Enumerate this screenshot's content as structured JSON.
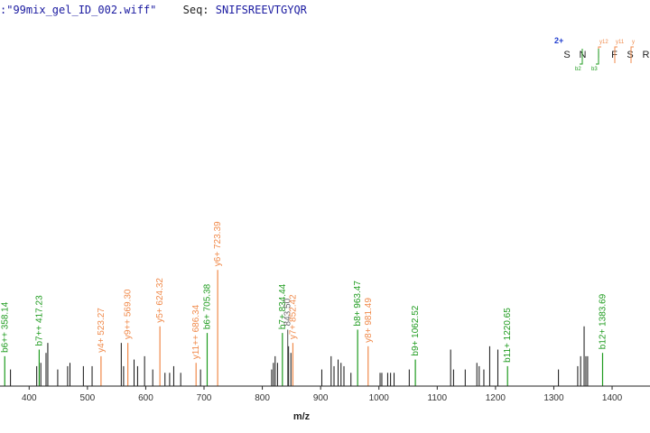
{
  "header": {
    "file_text": ":\"99mix_gel_ID_002.wiff\"",
    "seq_label": "Seq:",
    "seq_value": "SNIFSREEVTGYQR"
  },
  "colors": {
    "b_ion": "#1e9b1e",
    "y_ion": "#f08a4b",
    "unassigned": "#111111",
    "text_grey": "#666666",
    "charge": "#1e3ccf"
  },
  "chart_data": {
    "type": "bar",
    "xlabel": "m/z",
    "xlim": [
      350,
      1465
    ],
    "ylim": [
      0,
      100
    ],
    "x_ticks": [
      400,
      500,
      600,
      700,
      800,
      900,
      1000,
      1100,
      1200,
      1300,
      1400
    ],
    "labeled_peaks": [
      {
        "mz": 358.14,
        "rel": 9,
        "ion": "b",
        "label": "b6++ 358.14"
      },
      {
        "mz": 417.23,
        "rel": 11,
        "ion": "b",
        "label": "b7++ 417.23"
      },
      {
        "mz": 523.27,
        "rel": 9,
        "ion": "y",
        "label": "y4+ 523.27"
      },
      {
        "mz": 569.3,
        "rel": 13,
        "ion": "y",
        "label": "y9++ 569.30"
      },
      {
        "mz": 624.32,
        "rel": 18,
        "ion": "y",
        "label": "y5+ 624.32"
      },
      {
        "mz": 686.34,
        "rel": 7,
        "ion": "y",
        "label": "y11++ 686.34"
      },
      {
        "mz": 705.38,
        "rel": 16,
        "ion": "b",
        "label": "b6+ 705.38"
      },
      {
        "mz": 723.39,
        "rel": 35,
        "ion": "y",
        "label": "y6+ 723.39"
      },
      {
        "mz": 834.44,
        "rel": 16,
        "ion": "b",
        "label": "b7+ 834.44"
      },
      {
        "mz": 843.5,
        "rel": 17,
        "ion": "u",
        "label": "843.50"
      },
      {
        "mz": 852.42,
        "rel": 13,
        "ion": "y",
        "label": "y7+ 852.42"
      },
      {
        "mz": 963.47,
        "rel": 17,
        "ion": "b",
        "label": "b8+ 963.47"
      },
      {
        "mz": 981.49,
        "rel": 12,
        "ion": "y",
        "label": "y8+ 981.49"
      },
      {
        "mz": 1062.52,
        "rel": 8,
        "ion": "b",
        "label": "b9+ 1062.52"
      },
      {
        "mz": 1220.65,
        "rel": 6,
        "ion": "b",
        "label": "b11+ 1220.65"
      },
      {
        "mz": 1383.69,
        "rel": 10,
        "ion": "b",
        "label": "b12+ 1383.69"
      }
    ],
    "unlabeled_peaks": [
      {
        "mz": 368,
        "rel": 5
      },
      {
        "mz": 413,
        "rel": 6
      },
      {
        "mz": 420,
        "rel": 7
      },
      {
        "mz": 429,
        "rel": 10
      },
      {
        "mz": 432,
        "rel": 13
      },
      {
        "mz": 449,
        "rel": 5
      },
      {
        "mz": 466,
        "rel": 6
      },
      {
        "mz": 470,
        "rel": 7
      },
      {
        "mz": 493,
        "rel": 6
      },
      {
        "mz": 508,
        "rel": 6
      },
      {
        "mz": 558,
        "rel": 13
      },
      {
        "mz": 562,
        "rel": 6
      },
      {
        "mz": 580,
        "rel": 8
      },
      {
        "mz": 586,
        "rel": 6
      },
      {
        "mz": 598,
        "rel": 9
      },
      {
        "mz": 612,
        "rel": 5
      },
      {
        "mz": 633,
        "rel": 4
      },
      {
        "mz": 641,
        "rel": 4
      },
      {
        "mz": 648,
        "rel": 6
      },
      {
        "mz": 660,
        "rel": 4
      },
      {
        "mz": 694,
        "rel": 5
      },
      {
        "mz": 816,
        "rel": 5
      },
      {
        "mz": 819,
        "rel": 7
      },
      {
        "mz": 822,
        "rel": 9
      },
      {
        "mz": 826,
        "rel": 7
      },
      {
        "mz": 845,
        "rel": 12
      },
      {
        "mz": 849,
        "rel": 10
      },
      {
        "mz": 902,
        "rel": 5
      },
      {
        "mz": 918,
        "rel": 9
      },
      {
        "mz": 923,
        "rel": 6
      },
      {
        "mz": 930,
        "rel": 8
      },
      {
        "mz": 935,
        "rel": 7
      },
      {
        "mz": 940,
        "rel": 6
      },
      {
        "mz": 952,
        "rel": 4
      },
      {
        "mz": 1002,
        "rel": 4
      },
      {
        "mz": 1005,
        "rel": 4
      },
      {
        "mz": 1015,
        "rel": 4
      },
      {
        "mz": 1020,
        "rel": 4
      },
      {
        "mz": 1026,
        "rel": 4
      },
      {
        "mz": 1052,
        "rel": 5
      },
      {
        "mz": 1123,
        "rel": 11
      },
      {
        "mz": 1128,
        "rel": 5
      },
      {
        "mz": 1148,
        "rel": 5
      },
      {
        "mz": 1168,
        "rel": 7
      },
      {
        "mz": 1172,
        "rel": 6
      },
      {
        "mz": 1180,
        "rel": 5
      },
      {
        "mz": 1190,
        "rel": 12
      },
      {
        "mz": 1204,
        "rel": 11
      },
      {
        "mz": 1308,
        "rel": 5
      },
      {
        "mz": 1341,
        "rel": 6
      },
      {
        "mz": 1346,
        "rel": 9
      },
      {
        "mz": 1352,
        "rel": 18
      },
      {
        "mz": 1355,
        "rel": 9
      },
      {
        "mz": 1358,
        "rel": 9
      }
    ],
    "sequence_map": {
      "charge": "2+",
      "residues": [
        "S",
        "N",
        "I",
        "F",
        "S",
        "R"
      ],
      "b_ions": [
        "b2",
        "b3"
      ],
      "y_ions": [
        "y12",
        "y11",
        "y"
      ]
    }
  }
}
